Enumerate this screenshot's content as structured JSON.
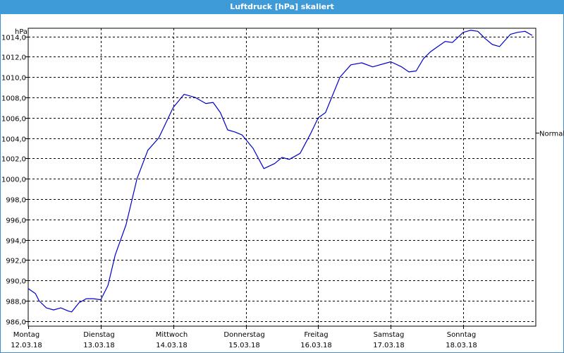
{
  "chart_data": {
    "type": "line",
    "title": "Luftdruck [hPa] skaliert",
    "ylabel": "hPa",
    "xlabel": "",
    "ylim": [
      985.5,
      1014.8
    ],
    "yticks": [
      "986,0",
      "988,0",
      "990,0",
      "992,0",
      "994,0",
      "996,0",
      "998,0",
      "1000,0",
      "1002,0",
      "1004,0",
      "1006,0",
      "1008,0",
      "1010,0",
      "1012,0",
      "1014,0"
    ],
    "ytick_values": [
      986,
      988,
      990,
      992,
      994,
      996,
      998,
      1000,
      1002,
      1004,
      1006,
      1008,
      1010,
      1012,
      1014
    ],
    "xlim": [
      0,
      7
    ],
    "xticks": [
      {
        "x": 0,
        "day": "Montag",
        "date": "12.03.18"
      },
      {
        "x": 1,
        "day": "Dienstag",
        "date": "13.03.18"
      },
      {
        "x": 2,
        "day": "Mittwoch",
        "date": "14.03.18"
      },
      {
        "x": 3,
        "day": "Donnerstag",
        "date": "15.03.18"
      },
      {
        "x": 4,
        "day": "Freitag",
        "date": "16.03.18"
      },
      {
        "x": 5,
        "day": "Samstag",
        "date": "17.03.18"
      },
      {
        "x": 6,
        "day": "Sonntag",
        "date": "18.03.18"
      }
    ],
    "reference_line": {
      "label": "Normal",
      "value": 1004.5
    },
    "grid": true,
    "series": [
      {
        "color": "#0000cc",
        "x": [
          0,
          0.1,
          0.15,
          0.25,
          0.35,
          0.45,
          0.55,
          0.6,
          0.7,
          0.8,
          0.9,
          1.0,
          1.1,
          1.2,
          1.35,
          1.5,
          1.65,
          1.8,
          2.0,
          2.15,
          2.3,
          2.45,
          2.55,
          2.65,
          2.75,
          2.85,
          2.95,
          3.1,
          3.25,
          3.4,
          3.5,
          3.6,
          3.75,
          3.9,
          4.0,
          4.1,
          4.3,
          4.45,
          4.6,
          4.75,
          5.0,
          5.15,
          5.25,
          5.35,
          5.45,
          5.55,
          5.65,
          5.75,
          5.85,
          6.0,
          6.1,
          6.2,
          6.3,
          6.4,
          6.5,
          6.65,
          6.75,
          6.85,
          6.95
        ],
        "y": [
          989.2,
          988.7,
          988.0,
          987.3,
          987.1,
          987.3,
          987.0,
          986.9,
          987.8,
          988.2,
          988.2,
          988.1,
          989.5,
          992.5,
          995.5,
          1000.0,
          1002.8,
          1004.0,
          1007.0,
          1008.3,
          1008.0,
          1007.4,
          1007.5,
          1006.5,
          1004.8,
          1004.6,
          1004.3,
          1003.0,
          1001.0,
          1001.5,
          1002.1,
          1001.9,
          1002.5,
          1004.5,
          1006.0,
          1006.5,
          1010.0,
          1011.2,
          1011.4,
          1011.0,
          1011.5,
          1011.0,
          1010.5,
          1010.6,
          1011.8,
          1012.5,
          1013.0,
          1013.5,
          1013.4,
          1014.4,
          1014.6,
          1014.5,
          1013.8,
          1013.2,
          1013.0,
          1014.2,
          1014.4,
          1014.5,
          1014.1
        ]
      }
    ]
  }
}
